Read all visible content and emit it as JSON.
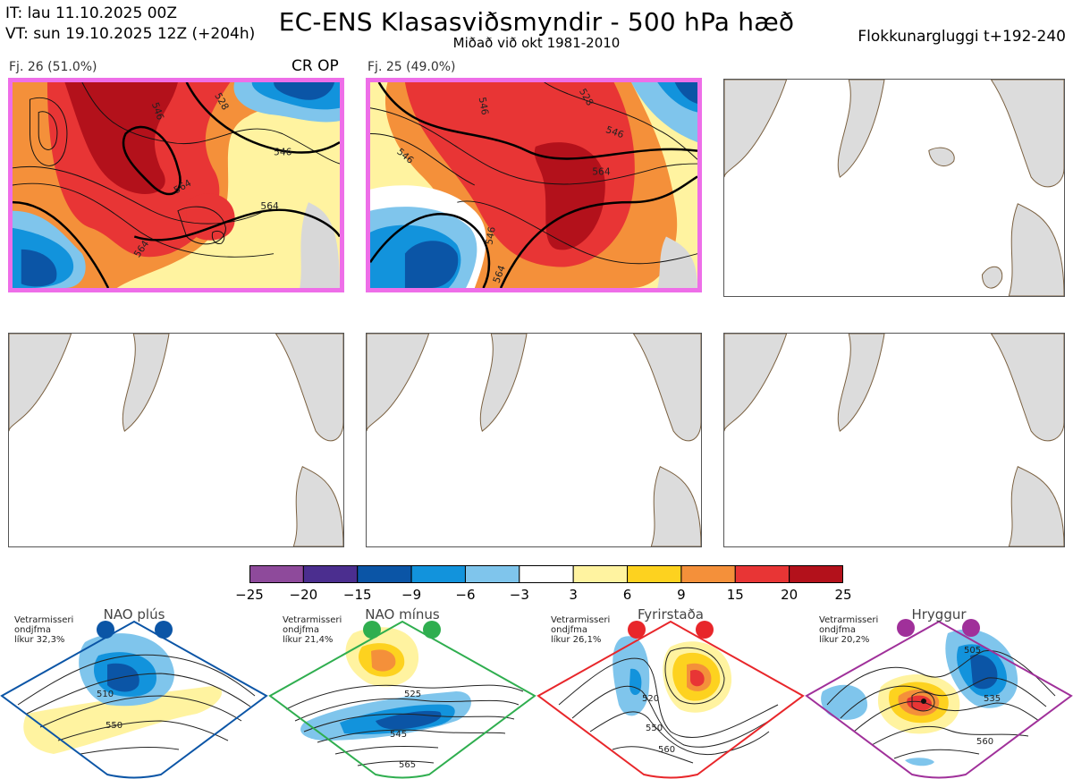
{
  "header": {
    "it_line": "IT: lau 11.10.2025 00Z",
    "vt_line": "VT: sun 19.10.2025 12Z  (+204h)",
    "title": "EC-ENS Klasasviðsmyndir - 500 hPa hæð",
    "subtitle": "Miðað við okt 1981-2010",
    "window": "Flokkunargluggi t+192-240"
  },
  "panels": [
    {
      "label": "Fj. 26 (51.0%)",
      "tag": "CR OP",
      "highlighted": true,
      "contour_labels": [
        "546",
        "546",
        "564",
        "564",
        "564",
        "528"
      ]
    },
    {
      "label": "Fj. 25 (49.0%)",
      "tag": "",
      "highlighted": true,
      "contour_labels": [
        "546",
        "546",
        "546",
        "564",
        "546",
        "564",
        "528"
      ]
    },
    {
      "label": "",
      "tag": "",
      "highlighted": false,
      "contour_labels": []
    },
    {
      "label": "",
      "tag": "",
      "highlighted": false,
      "contour_labels": []
    },
    {
      "label": "",
      "tag": "",
      "highlighted": false,
      "contour_labels": []
    },
    {
      "label": "",
      "tag": "",
      "highlighted": false,
      "contour_labels": []
    }
  ],
  "colorbar": {
    "ticks": [
      "−25",
      "−20",
      "−15",
      "−9",
      "−6",
      "−3",
      "3",
      "6",
      "9",
      "15",
      "20",
      "25"
    ],
    "colors": [
      "#8e4a9b",
      "#4b2e8f",
      "#0b55a6",
      "#1293dc",
      "#7fc5ec",
      "#ffffff",
      "#fff3a0",
      "#fdd21f",
      "#f4903a",
      "#e83535",
      "#b3111b"
    ]
  },
  "regimes": [
    {
      "name": "NAO plús",
      "note": [
        "Vetrarmisseri",
        "ondjfma",
        "líkur 32,3%"
      ],
      "color": "#0b55a6",
      "contours": [
        "510",
        "550"
      ]
    },
    {
      "name": "NAO mínus",
      "note": [
        "Vetrarmisseri",
        "ondjfma",
        "líkur 21,4%"
      ],
      "color": "#2fae4f",
      "contours": [
        "525",
        "545",
        "565"
      ]
    },
    {
      "name": "Fyrirstaða",
      "note": [
        "Vetrarmisseri",
        "ondjfma",
        "líkur 26,1%"
      ],
      "color": "#e8262a",
      "contours": [
        "520",
        "550",
        "560"
      ]
    },
    {
      "name": "Hryggur",
      "note": [
        "Vetrarmisseri",
        "ondjfma",
        "líkur 20,2%"
      ],
      "color": "#a0309a",
      "contours": [
        "505",
        "535",
        "560"
      ]
    }
  ]
}
